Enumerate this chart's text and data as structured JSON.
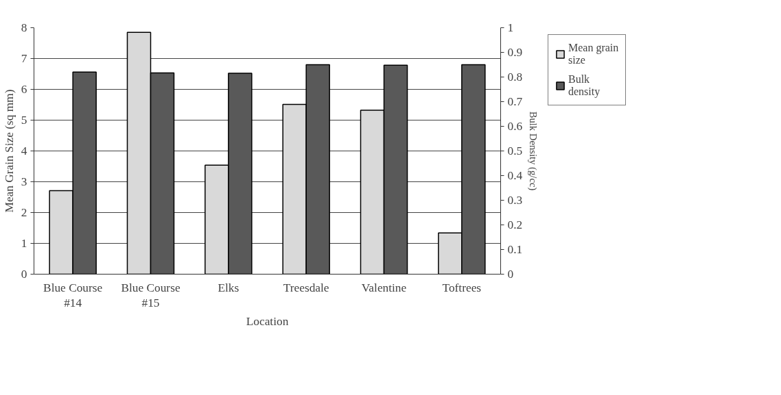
{
  "chart_data": {
    "type": "bar",
    "xlabel": "Location",
    "ylabel": "Mean Grain Size (sq mm)",
    "y2label": "Bulk Density (g/cc)",
    "categories": [
      "Blue Course #14",
      "Blue Course #15",
      "Elks",
      "Treesdale",
      "Valentine",
      "Toftrees"
    ],
    "series": [
      {
        "name": "Mean grain size",
        "color": "#d9d9d9",
        "values": [
          2.71,
          7.85,
          3.54,
          5.51,
          5.32,
          1.34
        ]
      },
      {
        "name": "Bulk density",
        "color": "#595959",
        "axis": "y2",
        "values": [
          0.82,
          0.817,
          0.815,
          0.85,
          0.848,
          0.85
        ]
      }
    ],
    "ylim": [
      0,
      8
    ],
    "yticks": [
      0,
      1,
      2,
      3,
      4,
      5,
      6,
      7,
      8
    ],
    "y2lim": [
      0,
      1
    ],
    "y2ticks": [
      0,
      0.1,
      0.2,
      0.3,
      0.4,
      0.5,
      0.6,
      0.7,
      0.8,
      0.9,
      1
    ],
    "grid": "y",
    "legend": "right"
  }
}
